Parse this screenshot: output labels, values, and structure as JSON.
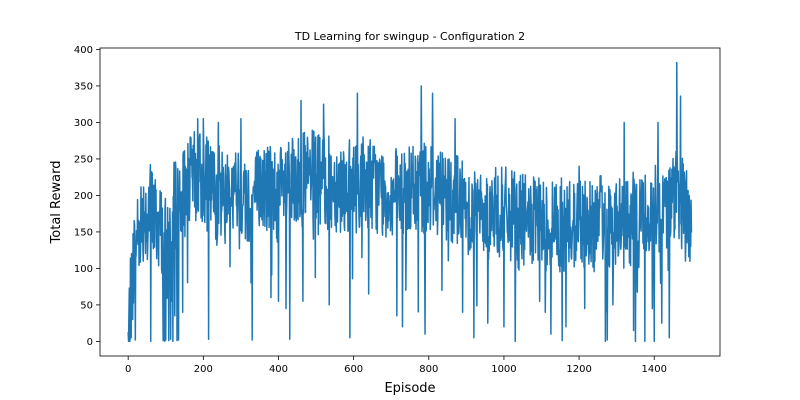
{
  "chart_data": {
    "type": "line",
    "title": "TD Learning for swingup - Configuration 2",
    "xlabel": "Episode",
    "ylabel": "Total Reward",
    "xlim": [
      -75,
      1575
    ],
    "ylim": [
      -20,
      402
    ],
    "xticks": [
      0,
      200,
      400,
      600,
      800,
      1000,
      1200,
      1400
    ],
    "yticks": [
      0,
      50,
      100,
      150,
      200,
      250,
      300,
      350,
      400
    ],
    "grid": false,
    "legend": "none",
    "series_color": "#1f77b4",
    "n_episodes": 1500,
    "series": [
      {
        "anchor_x": [
          0,
          5,
          10,
          15,
          20,
          25,
          30,
          40,
          50,
          60,
          70,
          80,
          90,
          100,
          105,
          110,
          115,
          120,
          130,
          140,
          150,
          160,
          170,
          180,
          190,
          200,
          210,
          220,
          230,
          240,
          250,
          260,
          270,
          280,
          300,
          320,
          330,
          340,
          360,
          380,
          400,
          420,
          440,
          460,
          480,
          500,
          520,
          540,
          560,
          580,
          600,
          610,
          620,
          640,
          660,
          680,
          700,
          720,
          740,
          760,
          770,
          780,
          800,
          820,
          840,
          860,
          880,
          900,
          920,
          940,
          960,
          980,
          1000,
          1020,
          1040,
          1060,
          1080,
          1100,
          1120,
          1140,
          1160,
          1180,
          1200,
          1220,
          1240,
          1260,
          1270,
          1280,
          1300,
          1320,
          1340,
          1350,
          1360,
          1380,
          1400,
          1420,
          1440,
          1460,
          1470,
          1480,
          1490,
          1499
        ],
        "anchor_y": [
          0,
          40,
          90,
          120,
          140,
          150,
          160,
          175,
          180,
          185,
          170,
          160,
          150,
          130,
          120,
          140,
          160,
          180,
          190,
          200,
          205,
          215,
          220,
          225,
          225,
          220,
          215,
          210,
          205,
          205,
          208,
          212,
          210,
          205,
          200,
          195,
          198,
          205,
          210,
          210,
          205,
          205,
          215,
          220,
          225,
          225,
          220,
          215,
          215,
          212,
          210,
          215,
          220,
          220,
          210,
          205,
          200,
          200,
          205,
          205,
          210,
          210,
          215,
          210,
          205,
          200,
          195,
          185,
          180,
          175,
          175,
          175,
          175,
          170,
          165,
          165,
          160,
          160,
          160,
          160,
          160,
          160,
          165,
          165,
          160,
          165,
          165,
          165,
          160,
          160,
          165,
          170,
          175,
          175,
          180,
          185,
          190,
          200,
          195,
          185,
          175,
          160
        ],
        "spread": 65,
        "seed": 7,
        "dips": [
          {
            "x": 1,
            "y": 0
          },
          {
            "x": 3,
            "y": 73
          },
          {
            "x": 8,
            "y": 5
          },
          {
            "x": 12,
            "y": 30
          },
          {
            "x": 15,
            "y": 103
          },
          {
            "x": 19,
            "y": 2
          },
          {
            "x": 60,
            "y": 0
          },
          {
            "x": 93,
            "y": 1
          },
          {
            "x": 97,
            "y": 0
          },
          {
            "x": 100,
            "y": 2
          },
          {
            "x": 104,
            "y": 60
          },
          {
            "x": 108,
            "y": 1
          },
          {
            "x": 113,
            "y": 3
          },
          {
            "x": 117,
            "y": 55
          },
          {
            "x": 119,
            "y": 0
          },
          {
            "x": 124,
            "y": 35
          },
          {
            "x": 130,
            "y": 1
          },
          {
            "x": 134,
            "y": 2
          },
          {
            "x": 145,
            "y": 40
          },
          {
            "x": 214,
            "y": 3
          },
          {
            "x": 330,
            "y": 2
          },
          {
            "x": 380,
            "y": 60
          },
          {
            "x": 400,
            "y": 55
          },
          {
            "x": 420,
            "y": 45
          },
          {
            "x": 430,
            "y": 3
          },
          {
            "x": 465,
            "y": 55
          },
          {
            "x": 535,
            "y": 50
          },
          {
            "x": 590,
            "y": 5
          },
          {
            "x": 640,
            "y": 65
          },
          {
            "x": 715,
            "y": 35
          },
          {
            "x": 730,
            "y": 20
          },
          {
            "x": 790,
            "y": 10
          },
          {
            "x": 835,
            "y": 70
          },
          {
            "x": 890,
            "y": 40
          },
          {
            "x": 920,
            "y": 5
          },
          {
            "x": 1000,
            "y": 20
          },
          {
            "x": 1030,
            "y": 0
          },
          {
            "x": 1095,
            "y": 55
          },
          {
            "x": 1110,
            "y": 40
          },
          {
            "x": 1125,
            "y": 10
          },
          {
            "x": 1155,
            "y": 1
          },
          {
            "x": 1165,
            "y": 20
          },
          {
            "x": 1215,
            "y": 45
          },
          {
            "x": 1270,
            "y": 0
          },
          {
            "x": 1275,
            "y": 2
          },
          {
            "x": 1290,
            "y": 50
          },
          {
            "x": 1345,
            "y": 15
          },
          {
            "x": 1350,
            "y": 0
          },
          {
            "x": 1375,
            "y": 0
          },
          {
            "x": 1395,
            "y": 45
          },
          {
            "x": 1400,
            "y": 0
          },
          {
            "x": 1420,
            "y": 25
          },
          {
            "x": 1440,
            "y": 5
          },
          {
            "x": 1483,
            "y": 110
          }
        ],
        "peaks": [
          {
            "x": 185,
            "y": 305
          },
          {
            "x": 200,
            "y": 305
          },
          {
            "x": 240,
            "y": 300
          },
          {
            "x": 300,
            "y": 305
          },
          {
            "x": 460,
            "y": 330
          },
          {
            "x": 520,
            "y": 325
          },
          {
            "x": 610,
            "y": 340
          },
          {
            "x": 780,
            "y": 350
          },
          {
            "x": 810,
            "y": 340
          },
          {
            "x": 870,
            "y": 305
          },
          {
            "x": 1200,
            "y": 240
          },
          {
            "x": 1320,
            "y": 300
          },
          {
            "x": 1410,
            "y": 300
          },
          {
            "x": 1460,
            "y": 382
          },
          {
            "x": 1470,
            "y": 336
          }
        ]
      }
    ]
  }
}
